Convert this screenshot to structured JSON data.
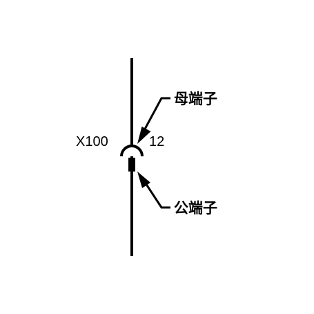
{
  "connector": {
    "code": "X100",
    "pin": "12"
  },
  "labels": {
    "female_terminal": "母端子",
    "male_terminal": "公端子"
  },
  "colors": {
    "line": "#000000",
    "background": "#ffffff"
  }
}
